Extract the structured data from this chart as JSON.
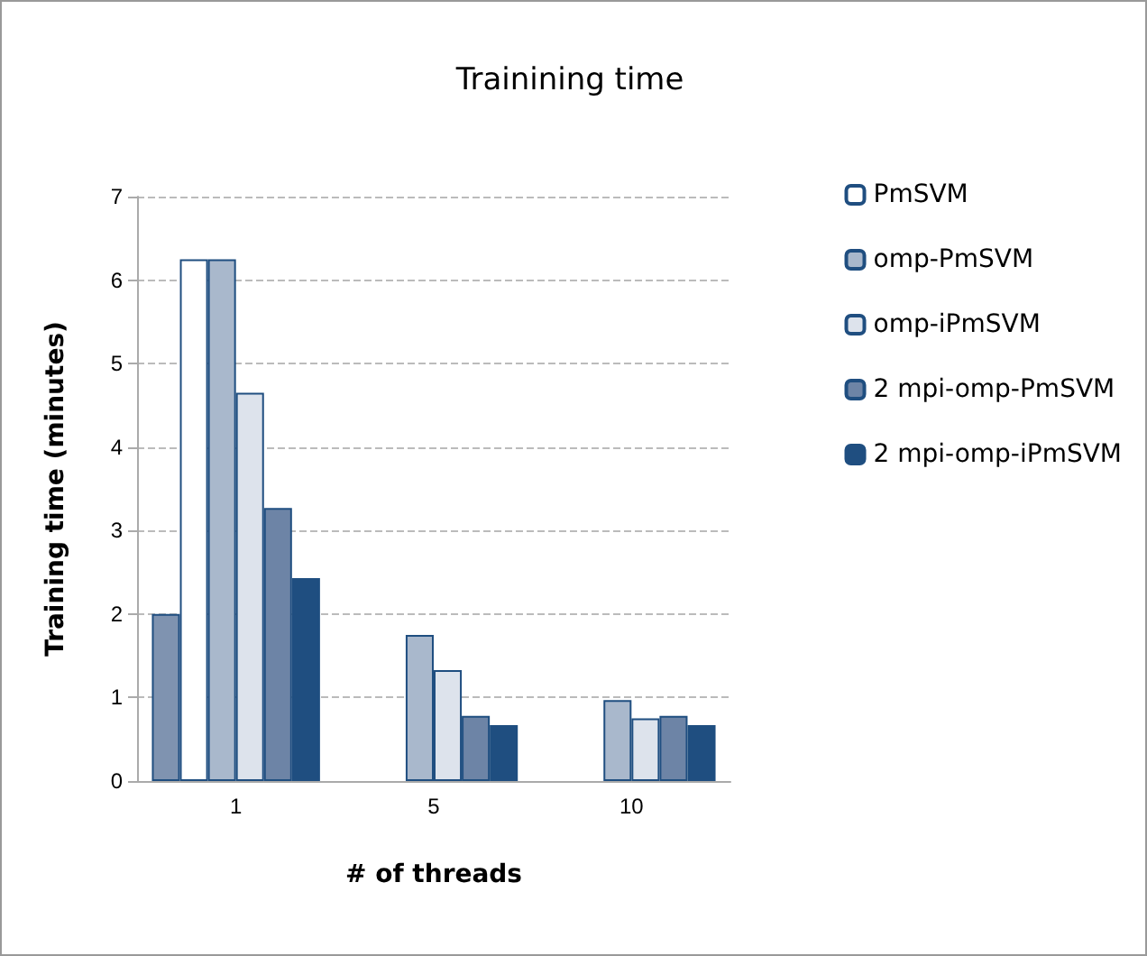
{
  "chart_data": {
    "type": "bar",
    "title": "Trainining time",
    "xlabel": "# of threads",
    "ylabel": "Training time (minutes)",
    "categories": [
      "1",
      "5",
      "10"
    ],
    "series": [
      {
        "color": "#7f93b0",
        "values": [
          2.0,
          null,
          null
        ]
      },
      {
        "name": "PmSVM",
        "color": "#ffffff",
        "values": [
          6.25,
          null,
          null
        ]
      },
      {
        "name": "omp-PmSVM",
        "color": "#a9b8cc",
        "values": [
          6.25,
          1.75,
          0.97
        ]
      },
      {
        "name": "omp-iPmSVM",
        "color": "#dde3ec",
        "values": [
          4.65,
          1.33,
          0.75
        ]
      },
      {
        "name": "2 mpi-omp-PmSVM",
        "color": "#6d84a6",
        "values": [
          3.27,
          0.78,
          0.78
        ]
      },
      {
        "name": "2 mpi-omp-iPmSVM",
        "color": "#1f4e80",
        "values": [
          2.43,
          0.67,
          0.67
        ]
      }
    ],
    "ylim": [
      0,
      7
    ],
    "yticks": [
      0,
      1,
      2,
      3,
      4,
      5,
      6,
      7
    ],
    "grid": "y",
    "legend": "right"
  }
}
